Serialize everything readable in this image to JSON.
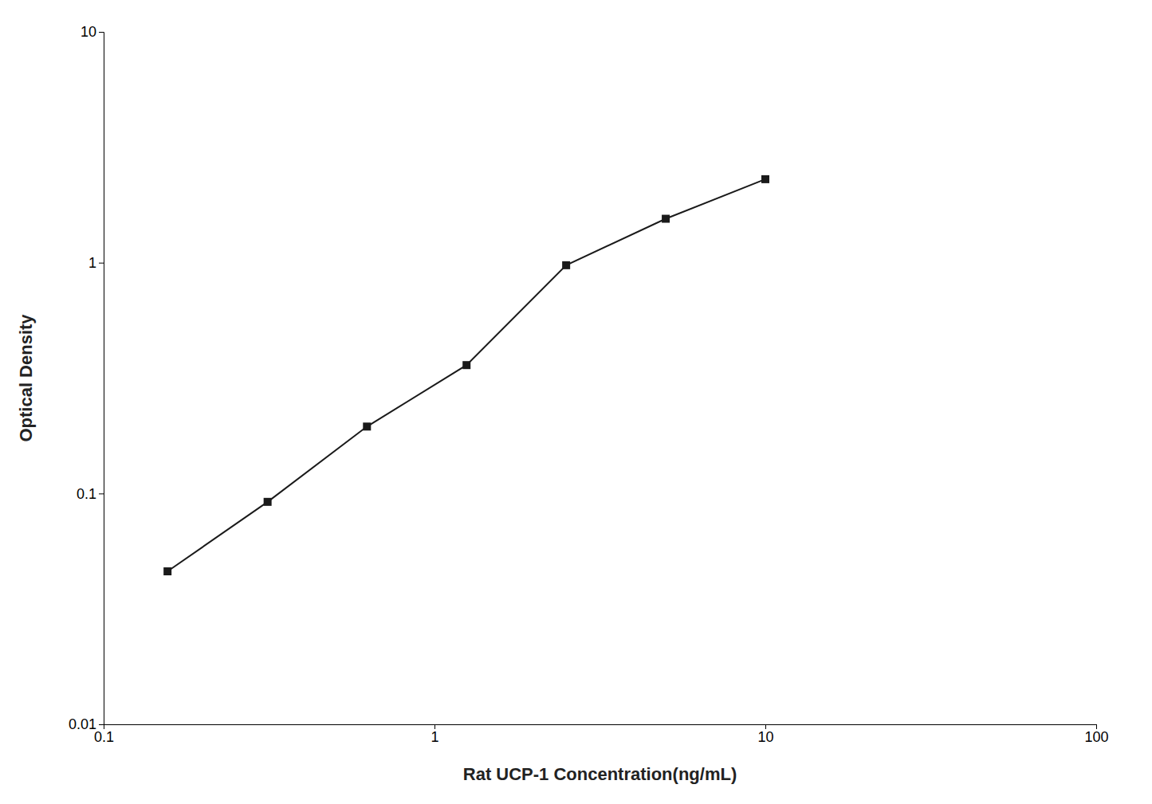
{
  "chart_data": {
    "type": "line",
    "x": [
      0.156,
      0.313,
      0.625,
      1.25,
      2.5,
      5.0,
      10.0
    ],
    "values": [
      0.046,
      0.092,
      0.195,
      0.36,
      0.975,
      1.55,
      2.3
    ],
    "xlabel": "Rat UCP-1 Concentration(ng/mL)",
    "ylabel": "Optical Density",
    "xlim": [
      0.1,
      100
    ],
    "ylim": [
      0.01,
      10
    ],
    "xticks": [
      0.1,
      1,
      10,
      100
    ],
    "yticks": [
      0.01,
      0.1,
      1,
      10
    ],
    "log": true,
    "color": "#1a1a1a",
    "marker": "square",
    "grid": false
  }
}
